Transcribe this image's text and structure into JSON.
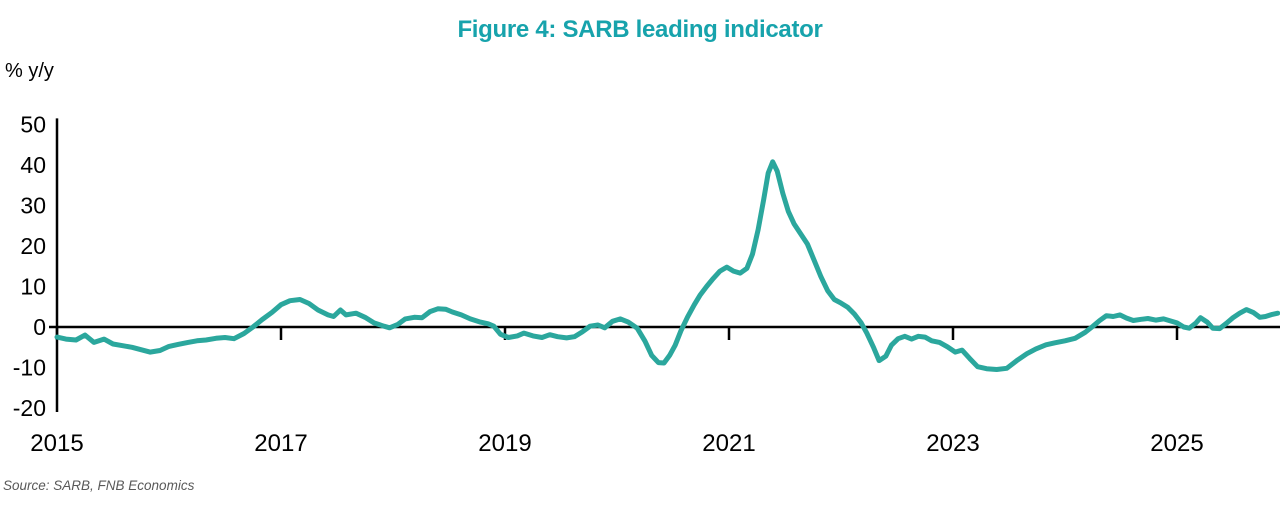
{
  "title": "Figure 4: SARB leading indicator",
  "y_axis_unit": "% y/y",
  "source": "Source: SARB, FNB Economics",
  "colors": {
    "accent_title": "#17A3AC",
    "line": "#2BA79D",
    "axis": "#000000",
    "source_text": "#595959"
  },
  "chart_data": {
    "type": "line",
    "title": "Figure 4: SARB leading indicator",
    "xlabel": "",
    "ylabel": "% y/y",
    "grid": false,
    "legend": "none",
    "zero_line": true,
    "xlim": [
      2015,
      2025.92
    ],
    "ylim": [
      -21,
      51.5
    ],
    "xticks": [
      2015,
      2017,
      2019,
      2021,
      2023,
      2025
    ],
    "yticks": [
      50,
      40,
      30,
      20,
      10,
      0,
      -10,
      -20
    ],
    "series": [
      {
        "name": "SARB leading indicator, % y/y",
        "x": [
          2015.0,
          2015.08,
          2015.17,
          2015.25,
          2015.33,
          2015.42,
          2015.5,
          2015.58,
          2015.67,
          2015.75,
          2015.83,
          2015.92,
          2016.0,
          2016.08,
          2016.17,
          2016.25,
          2016.33,
          2016.42,
          2016.5,
          2016.58,
          2016.67,
          2016.75,
          2016.83,
          2016.92,
          2017.0,
          2017.08,
          2017.17,
          2017.25,
          2017.33,
          2017.42,
          2017.47,
          2017.53,
          2017.58,
          2017.67,
          2017.75,
          2017.83,
          2017.92,
          2017.97,
          2018.04,
          2018.11,
          2018.19,
          2018.26,
          2018.33,
          2018.4,
          2018.47,
          2018.53,
          2018.61,
          2018.69,
          2018.78,
          2018.85,
          2018.9,
          2018.96,
          2019.03,
          2019.11,
          2019.17,
          2019.25,
          2019.33,
          2019.4,
          2019.47,
          2019.55,
          2019.62,
          2019.69,
          2019.76,
          2019.83,
          2019.89,
          2019.96,
          2020.03,
          2020.1,
          2020.18,
          2020.25,
          2020.31,
          2020.37,
          2020.42,
          2020.47,
          2020.52,
          2020.57,
          2020.63,
          2020.69,
          2020.74,
          2020.8,
          2020.86,
          2020.92,
          2020.98,
          2021.04,
          2021.1,
          2021.16,
          2021.21,
          2021.26,
          2021.31,
          2021.35,
          2021.39,
          2021.43,
          2021.48,
          2021.53,
          2021.58,
          2021.64,
          2021.7,
          2021.76,
          2021.82,
          2021.88,
          2021.94,
          2022.0,
          2022.06,
          2022.12,
          2022.18,
          2022.23,
          2022.29,
          2022.34,
          2022.4,
          2022.45,
          2022.51,
          2022.57,
          2022.63,
          2022.69,
          2022.75,
          2022.81,
          2022.88,
          2022.95,
          2023.02,
          2023.08,
          2023.15,
          2023.22,
          2023.3,
          2023.39,
          2023.48,
          2023.57,
          2023.66,
          2023.74,
          2023.83,
          2023.91,
          2024.0,
          2024.09,
          2024.18,
          2024.25,
          2024.31,
          2024.37,
          2024.43,
          2024.49,
          2024.55,
          2024.61,
          2024.68,
          2024.74,
          2024.81,
          2024.88,
          2024.94,
          2025.0,
          2025.06,
          2025.11,
          2025.17,
          2025.21,
          2025.27,
          2025.32,
          2025.38,
          2025.44,
          2025.5,
          2025.56,
          2025.62,
          2025.68,
          2025.74,
          2025.79,
          2025.85,
          2025.9
        ],
        "values": [
          -2.5,
          -3.0,
          -3.2,
          -2.0,
          -3.8,
          -3.0,
          -4.2,
          -4.6,
          -5.0,
          -5.6,
          -6.2,
          -5.8,
          -4.8,
          -4.3,
          -3.8,
          -3.4,
          -3.2,
          -2.8,
          -2.6,
          -2.9,
          -1.6,
          0.0,
          1.8,
          3.6,
          5.5,
          6.5,
          6.8,
          5.8,
          4.2,
          3.0,
          2.6,
          4.2,
          3.0,
          3.4,
          2.4,
          1.0,
          0.2,
          -0.2,
          0.6,
          2.0,
          2.4,
          2.3,
          3.8,
          4.5,
          4.4,
          3.7,
          3.0,
          2.0,
          1.2,
          0.8,
          0.2,
          -1.8,
          -2.6,
          -2.2,
          -1.5,
          -2.2,
          -2.6,
          -1.9,
          -2.4,
          -2.7,
          -2.4,
          -1.2,
          0.2,
          0.5,
          -0.2,
          1.4,
          2.0,
          1.2,
          -0.3,
          -3.5,
          -7.0,
          -8.8,
          -8.9,
          -7.0,
          -4.5,
          -1.0,
          2.5,
          5.5,
          7.8,
          10.0,
          12.0,
          13.8,
          14.8,
          13.8,
          13.3,
          14.5,
          18.0,
          24.0,
          31.5,
          38.0,
          40.8,
          38.5,
          33.0,
          28.5,
          25.5,
          23.0,
          20.5,
          16.5,
          12.5,
          9.0,
          6.8,
          5.9,
          4.9,
          3.2,
          1.0,
          -1.5,
          -5.0,
          -8.3,
          -7.2,
          -4.5,
          -2.9,
          -2.3,
          -3.0,
          -2.3,
          -2.5,
          -3.4,
          -3.8,
          -4.9,
          -6.2,
          -5.7,
          -7.8,
          -9.8,
          -10.3,
          -10.5,
          -10.2,
          -8.3,
          -6.6,
          -5.4,
          -4.4,
          -3.9,
          -3.4,
          -2.8,
          -1.3,
          0.2,
          1.6,
          2.8,
          2.6,
          3.0,
          2.2,
          1.6,
          1.9,
          2.1,
          1.7,
          2.0,
          1.5,
          1.0,
          0.0,
          -0.3,
          1.0,
          2.3,
          1.2,
          -0.3,
          -0.4,
          0.9,
          2.3,
          3.4,
          4.3,
          3.6,
          2.4,
          2.6,
          3.1,
          3.4
        ]
      }
    ]
  }
}
